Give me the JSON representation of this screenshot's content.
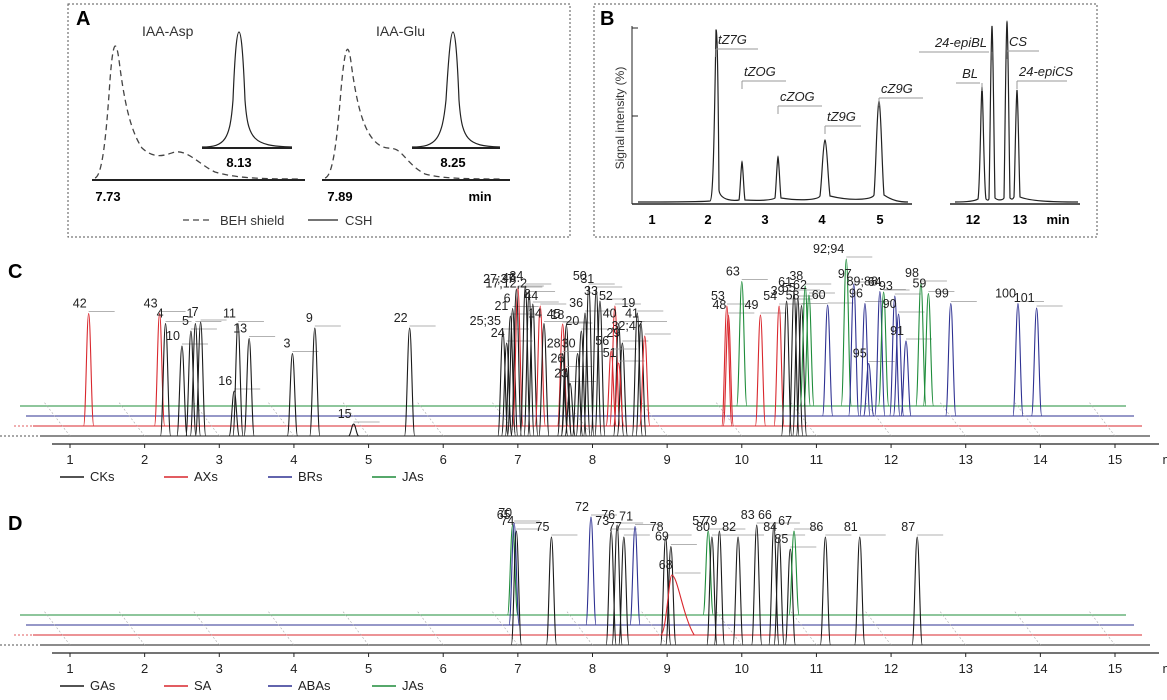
{
  "colors": {
    "CK": "#1a1a1a",
    "AX": "#d9272d",
    "BR": "#2e3192",
    "JA": "#1e8c3a",
    "GA": "#1a1a1a",
    "SA": "#d9272d",
    "ABA": "#2e3192"
  },
  "panel_labels": {
    "A": "A",
    "B": "B",
    "C": "C",
    "D": "D"
  },
  "chart_data": [
    {
      "panel": "A",
      "type": "line",
      "titles": [
        "IAA-Asp",
        "IAA-Glu"
      ],
      "xlabel": "min",
      "ticks": [
        "7.73",
        "8.13",
        "7.89",
        "8.25"
      ],
      "legend": [
        "BEH shield",
        "CSH"
      ],
      "series": [
        {
          "name": "BEH shield",
          "peaks": [
            {
              "compound": "IAA-Asp",
              "rt": 7.73
            },
            {
              "compound": "IAA-Glu",
              "rt": 7.89
            }
          ]
        },
        {
          "name": "CSH",
          "peaks": [
            {
              "compound": "IAA-Asp",
              "rt": 8.13
            },
            {
              "compound": "IAA-Glu",
              "rt": 8.25
            }
          ]
        }
      ]
    },
    {
      "panel": "B",
      "type": "line",
      "ylabel": "Signal intensity (%)",
      "xlabel": "min",
      "x_ticks_left": [
        "1",
        "2",
        "3",
        "4",
        "5"
      ],
      "x_ticks_right": [
        "12",
        "13"
      ],
      "peaks": [
        {
          "label": "tZ7G",
          "rt": 2.2,
          "height": 0.97
        },
        {
          "label": "tZOG",
          "rt": 2.6,
          "height": 0.22
        },
        {
          "label": "cZOG",
          "rt": 3.2,
          "height": 0.24
        },
        {
          "label": "tZ9G",
          "rt": 3.95,
          "height": 0.35
        },
        {
          "label": "cZ9G",
          "rt": 4.72,
          "height": 0.55
        },
        {
          "label": "BL",
          "rt": 12.2,
          "height": 0.65
        },
        {
          "label": "24-epiBL",
          "rt": 12.35,
          "height": 0.9
        },
        {
          "label": "CS",
          "rt": 12.8,
          "height": 1.0
        },
        {
          "label": "24-epiCS",
          "rt": 12.9,
          "height": 0.65
        }
      ]
    },
    {
      "panel": "C",
      "type": "line",
      "xlabel": "min",
      "xlim": [
        1,
        15
      ],
      "x_ticks": [
        "1",
        "2",
        "3",
        "4",
        "5",
        "6",
        "7",
        "8",
        "9",
        "10",
        "11",
        "12",
        "13",
        "14",
        "15"
      ],
      "legend": [
        "CKs",
        "AXs",
        "BRs",
        "JAs"
      ],
      "peak_labels": [
        {
          "text": "42",
          "rt": 1.25,
          "h": 0.75,
          "cls": "AX"
        },
        {
          "text": "43",
          "rt": 2.2,
          "h": 0.75,
          "cls": "AX"
        },
        {
          "text": "4",
          "rt": 2.28,
          "h": 0.75,
          "cls": "CK"
        },
        {
          "text": "10",
          "rt": 2.5,
          "h": 0.6,
          "cls": "CK"
        },
        {
          "text": "5",
          "rt": 2.62,
          "h": 0.7,
          "cls": "CK"
        },
        {
          "text": "1",
          "rt": 2.68,
          "h": 0.75,
          "cls": "CK"
        },
        {
          "text": "7",
          "rt": 2.75,
          "h": 0.76,
          "cls": "CK"
        },
        {
          "text": "16",
          "rt": 3.2,
          "h": 0.3,
          "cls": "CK"
        },
        {
          "text": "11",
          "rt": 3.25,
          "h": 0.75,
          "cls": "CK"
        },
        {
          "text": "13",
          "rt": 3.4,
          "h": 0.65,
          "cls": "CK"
        },
        {
          "text": "3",
          "rt": 3.98,
          "h": 0.55,
          "cls": "CK"
        },
        {
          "text": "9",
          "rt": 4.28,
          "h": 0.72,
          "cls": "CK"
        },
        {
          "text": "15",
          "rt": 4.8,
          "h": 0.08,
          "cls": "CK"
        },
        {
          "text": "22",
          "rt": 5.55,
          "h": 0.72,
          "cls": "CK"
        },
        {
          "text": "25;35",
          "rt": 6.8,
          "h": 0.7,
          "cls": "CK"
        },
        {
          "text": "24",
          "rt": 6.85,
          "h": 0.62,
          "cls": "CK"
        },
        {
          "text": "21",
          "rt": 6.9,
          "h": 0.8,
          "cls": "CK"
        },
        {
          "text": "6",
          "rt": 6.93,
          "h": 0.85,
          "cls": "CK"
        },
        {
          "text": "46",
          "rt": 7.0,
          "h": 0.92,
          "cls": "AX"
        },
        {
          "text": "27;37",
          "rt": 6.98,
          "h": 0.98,
          "cls": "CK"
        },
        {
          "text": "34",
          "rt": 7.1,
          "h": 1.0,
          "cls": "CK"
        },
        {
          "text": "17;12;2",
          "rt": 7.15,
          "h": 0.95,
          "cls": "CK"
        },
        {
          "text": "8",
          "rt": 7.2,
          "h": 0.88,
          "cls": "CK"
        },
        {
          "text": "44",
          "rt": 7.3,
          "h": 0.8,
          "cls": "AX"
        },
        {
          "text": "14",
          "rt": 7.35,
          "h": 0.75,
          "cls": "CK"
        },
        {
          "text": "45",
          "rt": 7.6,
          "h": 0.68,
          "cls": "AX"
        },
        {
          "text": "18",
          "rt": 7.65,
          "h": 0.74,
          "cls": "CK"
        },
        {
          "text": "28",
          "rt": 7.6,
          "h": 0.55,
          "cls": "CK"
        },
        {
          "text": "26",
          "rt": 7.65,
          "h": 0.45,
          "cls": "CK"
        },
        {
          "text": "23",
          "rt": 7.7,
          "h": 0.35,
          "cls": "CK"
        },
        {
          "text": "30",
          "rt": 7.8,
          "h": 0.55,
          "cls": "CK"
        },
        {
          "text": "20",
          "rt": 7.85,
          "h": 0.7,
          "cls": "CK"
        },
        {
          "text": "36",
          "rt": 7.9,
          "h": 0.82,
          "cls": "CK"
        },
        {
          "text": "50",
          "rt": 7.95,
          "h": 1.0,
          "cls": "CK"
        },
        {
          "text": "31",
          "rt": 8.05,
          "h": 0.98,
          "cls": "CK"
        },
        {
          "text": "33",
          "rt": 8.1,
          "h": 0.9,
          "cls": "CK"
        },
        {
          "text": "52",
          "rt": 8.3,
          "h": 0.8,
          "cls": "AX"
        },
        {
          "text": "40",
          "rt": 8.35,
          "h": 0.75,
          "cls": "CK"
        },
        {
          "text": "29",
          "rt": 8.4,
          "h": 0.62,
          "cls": "CK"
        },
        {
          "text": "56",
          "rt": 8.25,
          "h": 0.5,
          "cls": "AX"
        },
        {
          "text": "51",
          "rt": 8.35,
          "h": 0.42,
          "cls": "AX"
        },
        {
          "text": "19",
          "rt": 8.6,
          "h": 0.82,
          "cls": "CK"
        },
        {
          "text": "41",
          "rt": 8.65,
          "h": 0.75,
          "cls": "CK"
        },
        {
          "text": "32;47",
          "rt": 8.7,
          "h": 0.6,
          "cls": "AX"
        },
        {
          "text": "53",
          "rt": 9.8,
          "h": 0.8,
          "cls": "AX"
        },
        {
          "text": "48",
          "rt": 9.82,
          "h": 0.74,
          "cls": "AX"
        },
        {
          "text": "63",
          "rt": 10.0,
          "h": 0.83,
          "cls": "JA"
        },
        {
          "text": "49",
          "rt": 10.25,
          "h": 0.74,
          "cls": "AX"
        },
        {
          "text": "54",
          "rt": 10.5,
          "h": 0.8,
          "cls": "AX"
        },
        {
          "text": "39",
          "rt": 10.6,
          "h": 0.9,
          "cls": "CK"
        },
        {
          "text": "61",
          "rt": 10.7,
          "h": 0.96,
          "cls": "CK"
        },
        {
          "text": "55",
          "rt": 10.75,
          "h": 0.92,
          "cls": "CK"
        },
        {
          "text": "58",
          "rt": 10.8,
          "h": 0.87,
          "cls": "CK"
        },
        {
          "text": "38",
          "rt": 10.85,
          "h": 0.8,
          "cls": "JA"
        },
        {
          "text": "62",
          "rt": 10.9,
          "h": 0.74,
          "cls": "JA"
        },
        {
          "text": "60",
          "rt": 11.15,
          "h": 0.74,
          "cls": "BR"
        },
        {
          "text": "92;94",
          "rt": 11.4,
          "h": 0.98,
          "cls": "JA"
        },
        {
          "text": "97",
          "rt": 11.5,
          "h": 0.88,
          "cls": "BR"
        },
        {
          "text": "96",
          "rt": 11.65,
          "h": 0.75,
          "cls": "BR"
        },
        {
          "text": "95",
          "rt": 11.7,
          "h": 0.35,
          "cls": "BR"
        },
        {
          "text": "89;88",
          "rt": 11.85,
          "h": 0.83,
          "cls": "BR"
        },
        {
          "text": "64",
          "rt": 11.9,
          "h": 0.76,
          "cls": "JA"
        },
        {
          "text": "93",
          "rt": 12.05,
          "h": 0.8,
          "cls": "BR"
        },
        {
          "text": "90",
          "rt": 12.1,
          "h": 0.68,
          "cls": "BR"
        },
        {
          "text": "91",
          "rt": 12.2,
          "h": 0.5,
          "cls": "BR"
        },
        {
          "text": "98",
          "rt": 12.4,
          "h": 0.82,
          "cls": "JA"
        },
        {
          "text": "59",
          "rt": 12.5,
          "h": 0.75,
          "cls": "JA"
        },
        {
          "text": "99",
          "rt": 12.8,
          "h": 0.75,
          "cls": "BR"
        },
        {
          "text": "100",
          "rt": 13.7,
          "h": 0.75,
          "cls": "BR"
        },
        {
          "text": "101",
          "rt": 13.95,
          "h": 0.72,
          "cls": "BR"
        }
      ]
    },
    {
      "panel": "D",
      "type": "line",
      "xlabel": "min",
      "xlim": [
        1,
        15
      ],
      "x_ticks": [
        "1",
        "2",
        "3",
        "4",
        "5",
        "6",
        "7",
        "8",
        "9",
        "10",
        "11",
        "12",
        "13",
        "14",
        "15"
      ],
      "legend": [
        "GAs",
        "SA",
        "ABAs",
        "JAs"
      ],
      "peak_labels": [
        {
          "text": "65",
          "rt": 6.93,
          "h": 0.75,
          "cls": "JA"
        },
        {
          "text": "70",
          "rt": 6.95,
          "h": 0.85,
          "cls": "ABA"
        },
        {
          "text": "74",
          "rt": 6.98,
          "h": 0.95,
          "cls": "GA"
        },
        {
          "text": "75",
          "rt": 7.45,
          "h": 0.9,
          "cls": "GA"
        },
        {
          "text": "72",
          "rt": 7.98,
          "h": 0.9,
          "cls": "ABA"
        },
        {
          "text": "73",
          "rt": 8.25,
          "h": 0.95,
          "cls": "GA"
        },
        {
          "text": "76",
          "rt": 8.33,
          "h": 1.0,
          "cls": "GA"
        },
        {
          "text": "77",
          "rt": 8.42,
          "h": 0.9,
          "cls": "GA"
        },
        {
          "text": "71",
          "rt": 8.57,
          "h": 0.82,
          "cls": "ABA"
        },
        {
          "text": "78",
          "rt": 8.98,
          "h": 0.9,
          "cls": "GA"
        },
        {
          "text": "69",
          "rt": 9.05,
          "h": 0.82,
          "cls": "GA"
        },
        {
          "text": "68",
          "rt": 9.1,
          "h": 0.5,
          "cls": "SA"
        },
        {
          "text": "57",
          "rt": 9.55,
          "h": 0.7,
          "cls": "JA"
        },
        {
          "text": "80",
          "rt": 9.6,
          "h": 0.9,
          "cls": "GA"
        },
        {
          "text": "79",
          "rt": 9.7,
          "h": 0.95,
          "cls": "GA"
        },
        {
          "text": "82",
          "rt": 9.95,
          "h": 0.9,
          "cls": "GA"
        },
        {
          "text": "83",
          "rt": 10.2,
          "h": 1.0,
          "cls": "GA"
        },
        {
          "text": "66",
          "rt": 10.43,
          "h": 1.0,
          "cls": "GA"
        },
        {
          "text": "84",
          "rt": 10.5,
          "h": 0.9,
          "cls": "GA"
        },
        {
          "text": "85",
          "rt": 10.65,
          "h": 0.8,
          "cls": "GA"
        },
        {
          "text": "67",
          "rt": 10.7,
          "h": 0.7,
          "cls": "JA"
        },
        {
          "text": "86",
          "rt": 11.12,
          "h": 0.9,
          "cls": "GA"
        },
        {
          "text": "81",
          "rt": 11.58,
          "h": 0.9,
          "cls": "GA"
        },
        {
          "text": "87",
          "rt": 12.35,
          "h": 0.9,
          "cls": "GA"
        }
      ]
    }
  ]
}
